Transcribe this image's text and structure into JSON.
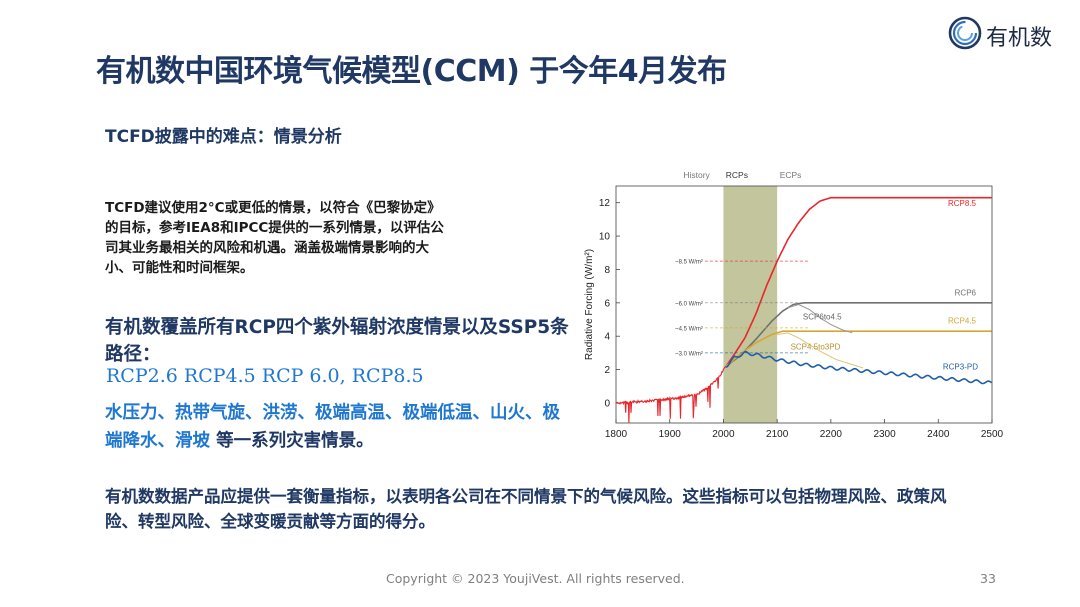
{
  "logo": {
    "text": "有机数",
    "icon": "youjivest-ring-logo-icon"
  },
  "title": "有机数中国环境气候模型(CCM) 于今年4月发布",
  "subtitle": "TCFD披露中的难点：情景分析",
  "paragraph1": "TCFD建议使用2°C或更低的情景，以符合《巴黎协定》的目标，参考IEA8和IPCC提供的一系列情景，以评估公司其业务最相关的风险和机遇。涵盖极端情景影响的大小、可能性和时间框架。",
  "paragraph2": "有机数覆盖所有RCP四个紫外辐射浓度情景以及SSP5条路径：",
  "rcp_list": "RCP2.6  RCP4.5  RCP 6.0, RCP8.5",
  "hazards": {
    "highlight": "水压力、热带气旋、洪涝、极端高温、极端低温、山火、极端降水、滑坡",
    "suffix": " 等一系列灾害情景。"
  },
  "paragraph3": "有机数数据产品应提供一套衡量指标，以表明各公司在不同情景下的气候风险。这些指标可以包括物理风险、政策风险、转型风险、全球变暖贡献等方面的得分。",
  "footer": "Copyright © 2023 YoujiVest. All rights reserved.",
  "page_number": "33",
  "chart_data": {
    "type": "line",
    "ylabel": "Radiative Forcing (W/m²)",
    "xlabel": "",
    "xlim": [
      1800,
      2500
    ],
    "ylim": [
      -1.2,
      13
    ],
    "x_ticks": [
      "1800",
      "1900",
      "2000",
      "2100",
      "2200",
      "2300",
      "2400",
      "2500"
    ],
    "y_ticks": [
      "0",
      "2",
      "4",
      "6",
      "8",
      "10",
      "12"
    ],
    "period_labels": [
      "History",
      "RCPs",
      "ECPs"
    ],
    "period_bounds": [
      2000,
      2100
    ],
    "colors": {
      "red": "#e8262b",
      "grey": "#707070",
      "gold": "#d8a630",
      "blue": "#1f5fa6",
      "scp_grey": "#9a9a9a",
      "scp_gold": "#e0c27a",
      "band": "#b9bb8c"
    },
    "series": [
      {
        "name": "RCP8.5",
        "color": "#e8262b",
        "points": [
          [
            2005,
            2.2
          ],
          [
            2020,
            2.9
          ],
          [
            2040,
            3.9
          ],
          [
            2060,
            5.3
          ],
          [
            2080,
            7.0
          ],
          [
            2100,
            8.5
          ],
          [
            2120,
            9.8
          ],
          [
            2140,
            10.8
          ],
          [
            2160,
            11.6
          ],
          [
            2180,
            12.1
          ],
          [
            2200,
            12.3
          ],
          [
            2250,
            12.3
          ],
          [
            2500,
            12.3
          ]
        ]
      },
      {
        "name": "RCP6",
        "color": "#707070",
        "points": [
          [
            2005,
            2.2
          ],
          [
            2030,
            2.8
          ],
          [
            2060,
            3.8
          ],
          [
            2090,
            4.9
          ],
          [
            2110,
            5.5
          ],
          [
            2130,
            5.9
          ],
          [
            2150,
            6.0
          ],
          [
            2500,
            6.0
          ]
        ]
      },
      {
        "name": "RCP4.5",
        "color": "#d8a630",
        "points": [
          [
            2005,
            2.2
          ],
          [
            2030,
            2.9
          ],
          [
            2060,
            3.6
          ],
          [
            2090,
            4.1
          ],
          [
            2110,
            4.3
          ],
          [
            2150,
            4.3
          ],
          [
            2500,
            4.3
          ]
        ]
      },
      {
        "name": "RCP3-PD",
        "color": "#1f5fa6",
        "points": [
          [
            2005,
            2.2
          ],
          [
            2020,
            2.7
          ],
          [
            2040,
            3.0
          ],
          [
            2060,
            2.9
          ],
          [
            2100,
            2.6
          ],
          [
            2150,
            2.3
          ],
          [
            2200,
            2.1
          ],
          [
            2300,
            1.8
          ],
          [
            2400,
            1.5
          ],
          [
            2500,
            1.2
          ]
        ]
      },
      {
        "name": "SCP6to4.5",
        "color": "#9a9a9a",
        "points": [
          [
            2120,
            5.7
          ],
          [
            2140,
            5.9
          ],
          [
            2160,
            5.6
          ],
          [
            2180,
            5.1
          ],
          [
            2200,
            4.7
          ],
          [
            2220,
            4.4
          ],
          [
            2240,
            4.2
          ]
        ]
      },
      {
        "name": "SCP4.5to3PD",
        "color": "#e0c27a",
        "points": [
          [
            2100,
            4.1
          ],
          [
            2120,
            4.2
          ],
          [
            2140,
            3.9
          ],
          [
            2160,
            3.5
          ],
          [
            2180,
            3.1
          ],
          [
            2210,
            2.6
          ],
          [
            2240,
            2.3
          ],
          [
            2260,
            2.1
          ]
        ]
      }
    ],
    "history": [
      [
        1800,
        0.0
      ],
      [
        1850,
        0.1
      ],
      [
        1900,
        0.25
      ],
      [
        1950,
        0.5
      ],
      [
        1970,
        0.9
      ],
      [
        1990,
        1.5
      ],
      [
        2005,
        2.2
      ]
    ],
    "annotations": [
      {
        "text": "~8.5 W/m²",
        "year": 2100,
        "value": 8.5
      },
      {
        "text": "~6.0 W/m²",
        "year": 2100,
        "value": 6.0
      },
      {
        "text": "~4.5 W/m²",
        "year": 2100,
        "value": 4.5
      },
      {
        "text": "~3.0 W/m²",
        "year": 2100,
        "value": 3.0
      }
    ]
  }
}
